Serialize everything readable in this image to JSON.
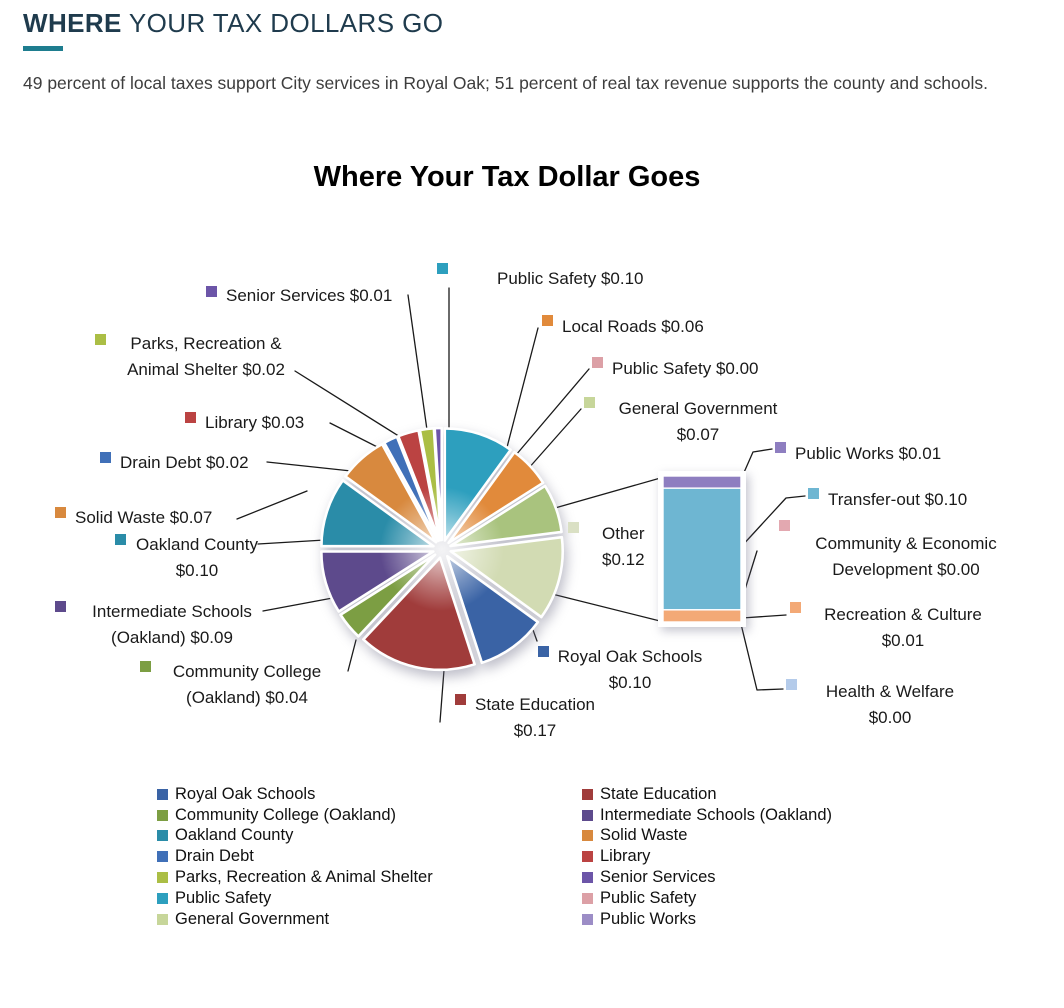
{
  "page": {
    "heading_bold": "WHERE",
    "heading_rest": " YOUR TAX DOLLARS GO",
    "accent_color": "#1E7D8F",
    "subtitle": "49 percent of local taxes support City services in Royal Oak; 51 percent of real tax revenue supports the county and schools."
  },
  "chart_data": {
    "type": "pie",
    "variant": "bar-of-pie",
    "title": "Where Your Tax Dollar Goes",
    "unit": "dollars per $1.00 of tax",
    "legend_position": "bottom",
    "slices": [
      {
        "label": "Public Safety",
        "value": 0.1,
        "display": "$0.10",
        "color": "#2D9FBE",
        "callout_lines": [
          "Public Safety $0.10"
        ]
      },
      {
        "label": "Local Roads",
        "value": 0.06,
        "display": "$0.06",
        "color": "#E18A3B",
        "callout_lines": [
          "Local Roads $0.06"
        ]
      },
      {
        "label": "Public Safety",
        "value": 0.0,
        "display": "$0.00",
        "color": "#DCA0A6",
        "callout_lines": [
          "Public Safety $0.00"
        ]
      },
      {
        "label": "General Government",
        "value": 0.07,
        "display": "$0.07",
        "color": "#A9C37E",
        "swatch": "#C7D69A",
        "callout_lines": [
          "General Government",
          "$0.07"
        ]
      },
      {
        "label": "Other",
        "value": 0.12,
        "display": "$0.12",
        "color": "#D2DBB3",
        "swatch": "#DAE0C4",
        "callout_lines": [
          "Other",
          "$0.12"
        ]
      },
      {
        "label": "Royal Oak Schools",
        "value": 0.1,
        "display": "$0.10",
        "color": "#3A63A5",
        "callout_lines": [
          "Royal Oak Schools",
          "$0.10"
        ]
      },
      {
        "label": "State Education",
        "value": 0.17,
        "display": "$0.17",
        "color": "#A03C3B",
        "callout_lines": [
          "State Education",
          "$0.17"
        ]
      },
      {
        "label": "Community College (Oakland)",
        "value": 0.04,
        "display": "$0.04",
        "color": "#7C9E43",
        "callout_lines": [
          "Community College",
          "(Oakland) $0.04"
        ]
      },
      {
        "label": "Intermediate Schools (Oakland)",
        "value": 0.09,
        "display": "$0.09",
        "color": "#5D4A8C",
        "callout_lines": [
          "Intermediate Schools",
          "(Oakland) $0.09"
        ]
      },
      {
        "label": "Oakland County",
        "value": 0.1,
        "display": "$0.10",
        "color": "#2A8CA8",
        "callout_lines": [
          "Oakland County",
          "$0.10"
        ]
      },
      {
        "label": "Solid Waste",
        "value": 0.07,
        "display": "$0.07",
        "color": "#D8893E",
        "callout_lines": [
          "Solid Waste $0.07"
        ]
      },
      {
        "label": "Drain Debt",
        "value": 0.02,
        "display": "$0.02",
        "color": "#4070B8",
        "callout_lines": [
          "Drain Debt $0.02"
        ]
      },
      {
        "label": "Library",
        "value": 0.03,
        "display": "$0.03",
        "color": "#BB4342",
        "callout_lines": [
          "Library $0.03"
        ]
      },
      {
        "label": "Parks, Recreation & Animal Shelter",
        "value": 0.02,
        "display": "$0.02",
        "color": "#ABBE45",
        "callout_lines": [
          "Parks, Recreation &",
          "Animal Shelter $0.02"
        ]
      },
      {
        "label": "Senior Services",
        "value": 0.01,
        "display": "$0.01",
        "color": "#6C55A8",
        "callout_lines": [
          "Senior Services $0.01"
        ]
      }
    ],
    "bar_breakout": [
      {
        "label": "Public Works",
        "value": 0.01,
        "display": "$0.01",
        "color": "#8E7EC0",
        "callout_lines": [
          "Public Works $0.01"
        ]
      },
      {
        "label": "Transfer-out",
        "value": 0.1,
        "display": "$0.10",
        "color": "#6EB6D2",
        "callout_lines": [
          "Transfer-out $0.10"
        ]
      },
      {
        "label": "Community & Economic Development",
        "value": 0.0,
        "display": "$0.00",
        "color": "#E3A8B0",
        "callout_lines": [
          "Community & Economic",
          "Development $0.00"
        ]
      },
      {
        "label": "Recreation & Culture",
        "value": 0.01,
        "display": "$0.01",
        "color": "#F3A976",
        "callout_lines": [
          "Recreation & Culture",
          "$0.01"
        ]
      },
      {
        "label": "Health & Welfare",
        "value": 0.0,
        "display": "$0.00",
        "color": "#B4CBEA",
        "callout_lines": [
          "Health & Welfare",
          "$0.00"
        ]
      }
    ],
    "legend": {
      "left": [
        {
          "label": "Royal Oak Schools",
          "color": "#3A63A5"
        },
        {
          "label": "Community College (Oakland)",
          "color": "#7C9E43"
        },
        {
          "label": "Oakland County",
          "color": "#2A8CA8"
        },
        {
          "label": "Drain Debt",
          "color": "#4070B8"
        },
        {
          "label": "Parks, Recreation & Animal Shelter",
          "color": "#ABBE45"
        },
        {
          "label": "Public Safety",
          "color": "#2D9FBE"
        },
        {
          "label": "General Government",
          "color": "#C7D69A"
        }
      ],
      "right": [
        {
          "label": "State Education",
          "color": "#A03C3B"
        },
        {
          "label": "Intermediate Schools (Oakland)",
          "color": "#5D4A8C"
        },
        {
          "label": "Solid Waste",
          "color": "#D8893E"
        },
        {
          "label": "Library",
          "color": "#BB4342"
        },
        {
          "label": "Senior Services",
          "color": "#6C55A8"
        },
        {
          "label": "Public Safety",
          "color": "#DCA0A6"
        },
        {
          "label": "Public Works",
          "color": "#9C8DC6"
        }
      ]
    }
  }
}
